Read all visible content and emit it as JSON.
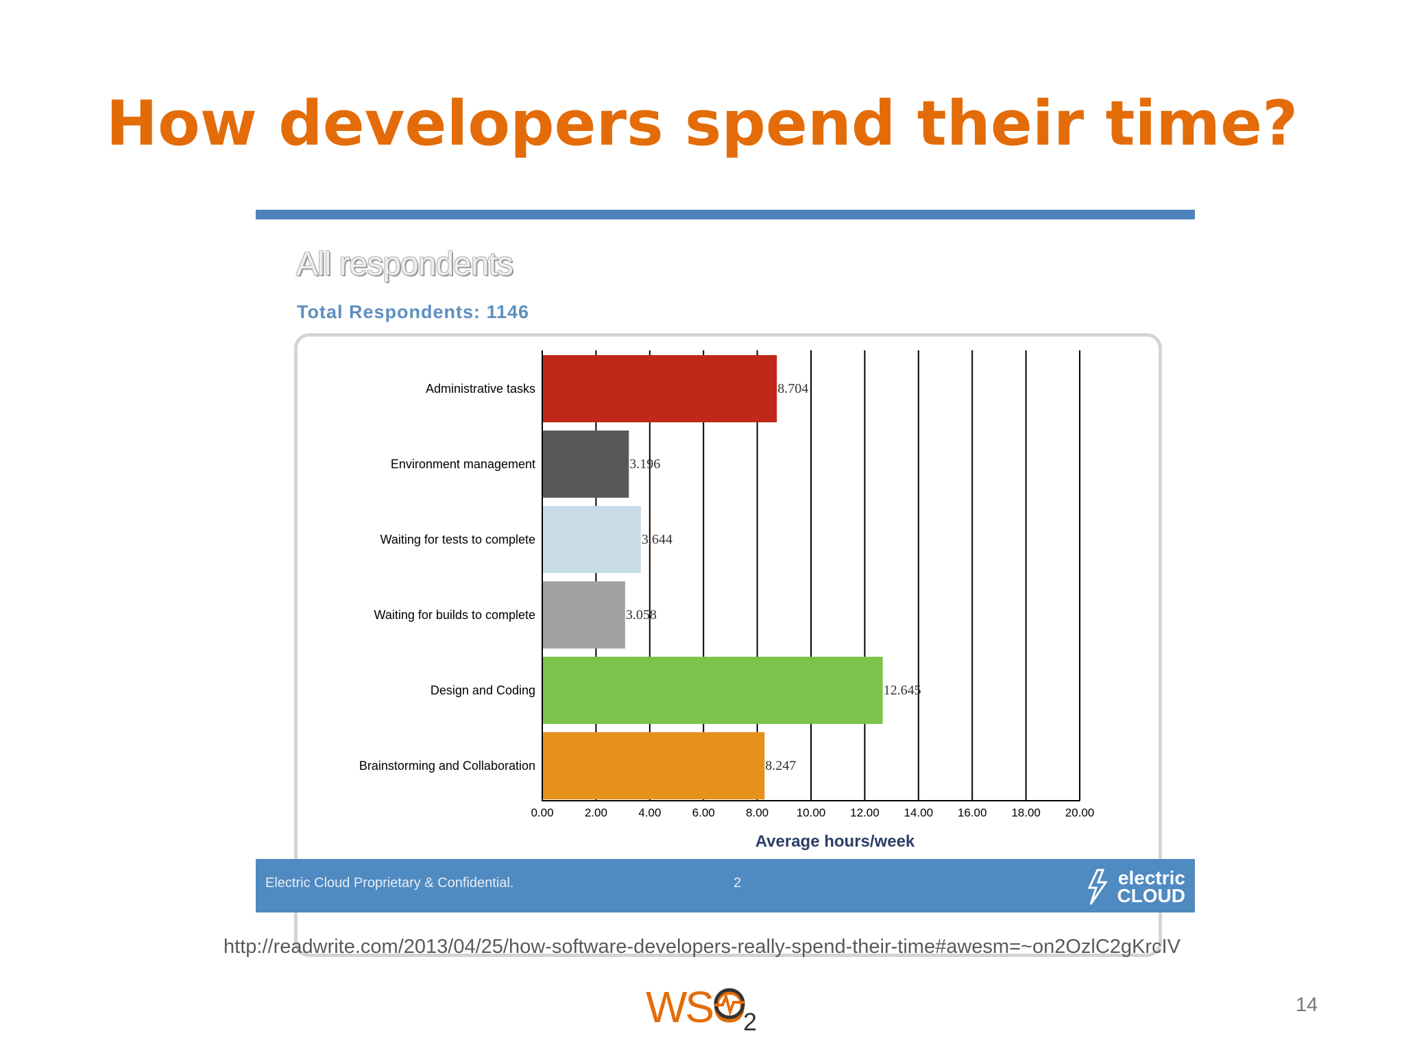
{
  "slide": {
    "title": "How developers spend their time?",
    "source_url": "http://readwrite.com/2013/04/25/how-software-developers-really-spend-their-time#awesm=~on2OzlC2gKrcIV",
    "slide_number": "14",
    "logo_text": "WSO",
    "logo_subscript": "2"
  },
  "panel": {
    "heading": "All respondents",
    "total_label": "Total Respondents: 1146",
    "footer_text": "Electric Cloud Proprietary & Confidential.",
    "footer_page": "2",
    "footer_logo_line1": "electric",
    "footer_logo_line2": "CLOUD",
    "accent_color": "#4f81bd"
  },
  "chart_data": {
    "type": "bar",
    "orientation": "horizontal",
    "title": "",
    "xlabel": "Average hours/week",
    "ylabel": "",
    "xlim": [
      0,
      20
    ],
    "x_ticks": [
      "0.00",
      "2.00",
      "4.00",
      "6.00",
      "8.00",
      "10.00",
      "12.00",
      "14.00",
      "16.00",
      "18.00",
      "20.00"
    ],
    "grid": "vertical",
    "legend": "none",
    "categories": [
      "Administrative tasks",
      "Environment management",
      "Waiting for tests to complete",
      "Waiting for builds to complete",
      "Design and Coding",
      "Brainstorming and Collaboration"
    ],
    "values": [
      8.704,
      3.196,
      3.644,
      3.058,
      12.645,
      8.247
    ],
    "value_labels": [
      "8.704",
      "3.196",
      "3.644",
      "3.058",
      "12.645",
      "8.247"
    ],
    "colors": [
      "#c0281a",
      "#58585a",
      "#c8dce8",
      "#a3a1a4",
      "#7dc24b",
      "#e5911c"
    ]
  }
}
